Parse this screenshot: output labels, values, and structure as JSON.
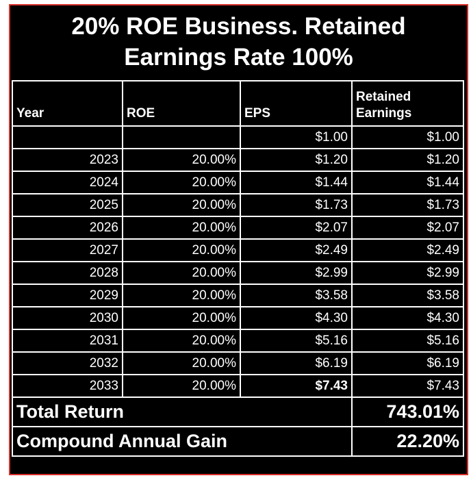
{
  "title": "20% ROE Business. Retained Earnings Rate 100%",
  "table": {
    "columns": [
      "Year",
      "ROE",
      "EPS",
      "Retained Earnings"
    ],
    "rows": [
      [
        null,
        null,
        "$1.00",
        "$1.00"
      ],
      [
        "2023",
        "20.00%",
        "$1.20",
        "$1.20"
      ],
      [
        "2024",
        "20.00%",
        "$1.44",
        "$1.44"
      ],
      [
        "2025",
        "20.00%",
        "$1.73",
        "$1.73"
      ],
      [
        "2026",
        "20.00%",
        "$2.07",
        "$2.07"
      ],
      [
        "2027",
        "20.00%",
        "$2.49",
        "$2.49"
      ],
      [
        "2028",
        "20.00%",
        "$2.99",
        "$2.99"
      ],
      [
        "2029",
        "20.00%",
        "$3.58",
        "$3.58"
      ],
      [
        "2030",
        "20.00%",
        "$4.30",
        "$4.30"
      ],
      [
        "2031",
        "20.00%",
        "$5.16",
        "$5.16"
      ],
      [
        "2032",
        "20.00%",
        "$6.19",
        "$6.19"
      ],
      [
        "2033",
        "20.00%",
        "$7.43",
        "$7.43"
      ]
    ],
    "summary": [
      {
        "label": "Total Return",
        "value": "743.01%"
      },
      {
        "label": "Compound Annual Gain",
        "value": "22.20%"
      }
    ]
  }
}
